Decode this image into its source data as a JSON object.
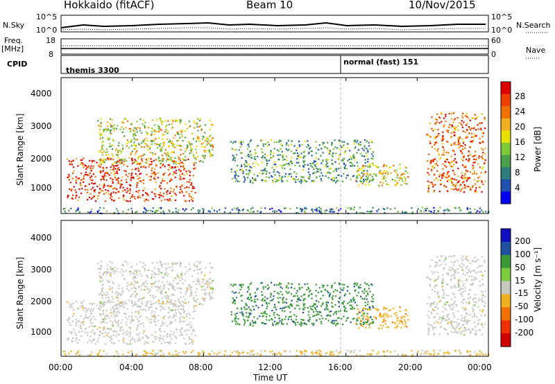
{
  "header": {
    "station": "Hokkaido (fitACF)",
    "beam": "Beam 10",
    "date": "10/Nov/2015"
  },
  "top_panels": {
    "nsky_label": "N.Sky",
    "nsky_ticks": [
      "10^5",
      "10^0"
    ],
    "nsearch_label": "N.Search",
    "freq_label": "Freq.",
    "freq_unit": "[MHz]",
    "freq_ticks": [
      "18",
      "8"
    ],
    "nave_ticks": [
      "60",
      "0"
    ],
    "nave_label": "Nave",
    "cpid_label": "CPID",
    "cpid_modes": [
      {
        "name": "themis 3300",
        "start_hour": 0,
        "end_hour": 16
      },
      {
        "name": "normal (fast) 151",
        "start_hour": 16,
        "end_hour": 24
      }
    ]
  },
  "power_panel": {
    "ylabel": "Slant Range [km]",
    "cbar_label": "Power [dB]",
    "cbar_ticks": [
      "28",
      "24",
      "20",
      "16",
      "12",
      "8",
      "4"
    ]
  },
  "velocity_panel": {
    "ylabel": "Slant Range [km]",
    "cbar_label": "Velocity [m s⁻¹]",
    "cbar_ticks": [
      "200",
      "100",
      "50",
      "15",
      "-15",
      "-50",
      "-100",
      "-200"
    ]
  },
  "x_axis": {
    "label": "Time UT",
    "ticks": [
      "00:00",
      "04:00",
      "08:00",
      "12:00",
      "16:00",
      "20:00",
      "00:00"
    ]
  },
  "colors": {
    "power_scale": [
      "#0000f0",
      "#2050b0",
      "#2e7d7d",
      "#4aa04a",
      "#7ec83a",
      "#e8e000",
      "#f0b020",
      "#f07000",
      "#f04000",
      "#e00000"
    ],
    "velocity_scale": [
      "#1010c0",
      "#2050a0",
      "#3a9a3a",
      "#7ccc40",
      "#c8c8c0",
      "#f0b020",
      "#f07000",
      "#f03000",
      "#d00000"
    ]
  },
  "chart_data": [
    {
      "type": "heatmap",
      "title": "Power",
      "xlabel": "Time UT",
      "ylabel": "Slant Range [km]",
      "xlim": [
        0,
        24
      ],
      "ylim": [
        180,
        4600
      ],
      "yticks": [
        1000,
        2000,
        3000,
        4000
      ],
      "colorbar": {
        "label": "Power [dB]",
        "range": [
          0,
          30
        ],
        "ticks": [
          4,
          8,
          12,
          16,
          20,
          24,
          28
        ]
      },
      "echo_regions": [
        {
          "t_start": 0.3,
          "t_end": 7.5,
          "r_min": 600,
          "r_max": 2000,
          "power_db": 26
        },
        {
          "t_start": 2.0,
          "t_end": 8.5,
          "r_min": 1800,
          "r_max": 3300,
          "power_db": 16
        },
        {
          "t_start": 9.5,
          "t_end": 17.5,
          "r_min": 1200,
          "r_max": 2600,
          "power_db": 10
        },
        {
          "t_start": 16.5,
          "t_end": 19.5,
          "r_min": 1100,
          "r_max": 1800,
          "power_db": 18
        },
        {
          "t_start": 20.5,
          "t_end": 23.8,
          "r_min": 900,
          "r_max": 3500,
          "power_db": 24
        },
        {
          "t_start": 0.0,
          "t_end": 24.0,
          "r_min": 200,
          "r_max": 400,
          "power_db": 8
        }
      ]
    },
    {
      "type": "heatmap",
      "title": "Velocity",
      "xlabel": "Time UT",
      "ylabel": "Slant Range [km]",
      "xlim": [
        0,
        24
      ],
      "ylim": [
        180,
        4600
      ],
      "yticks": [
        1000,
        2000,
        3000,
        4000
      ],
      "colorbar": {
        "label": "Velocity [m s⁻¹]",
        "range": [
          -250,
          250
        ],
        "ticks": [
          200,
          100,
          50,
          15,
          -15,
          -50,
          -100,
          -200
        ]
      },
      "echo_regions": [
        {
          "t_start": 0.3,
          "t_end": 7.5,
          "r_min": 600,
          "r_max": 2000,
          "velocity": 0
        },
        {
          "t_start": 2.0,
          "t_end": 8.5,
          "r_min": 1800,
          "r_max": 3300,
          "velocity": 0
        },
        {
          "t_start": 9.5,
          "t_end": 17.5,
          "r_min": 1200,
          "r_max": 2600,
          "velocity": 120
        },
        {
          "t_start": 16.5,
          "t_end": 19.5,
          "r_min": 1100,
          "r_max": 1800,
          "velocity": -60
        },
        {
          "t_start": 20.5,
          "t_end": 23.8,
          "r_min": 900,
          "r_max": 3500,
          "velocity": 0
        },
        {
          "t_start": 0.0,
          "t_end": 24.0,
          "r_min": 200,
          "r_max": 400,
          "velocity": -40
        }
      ]
    }
  ]
}
